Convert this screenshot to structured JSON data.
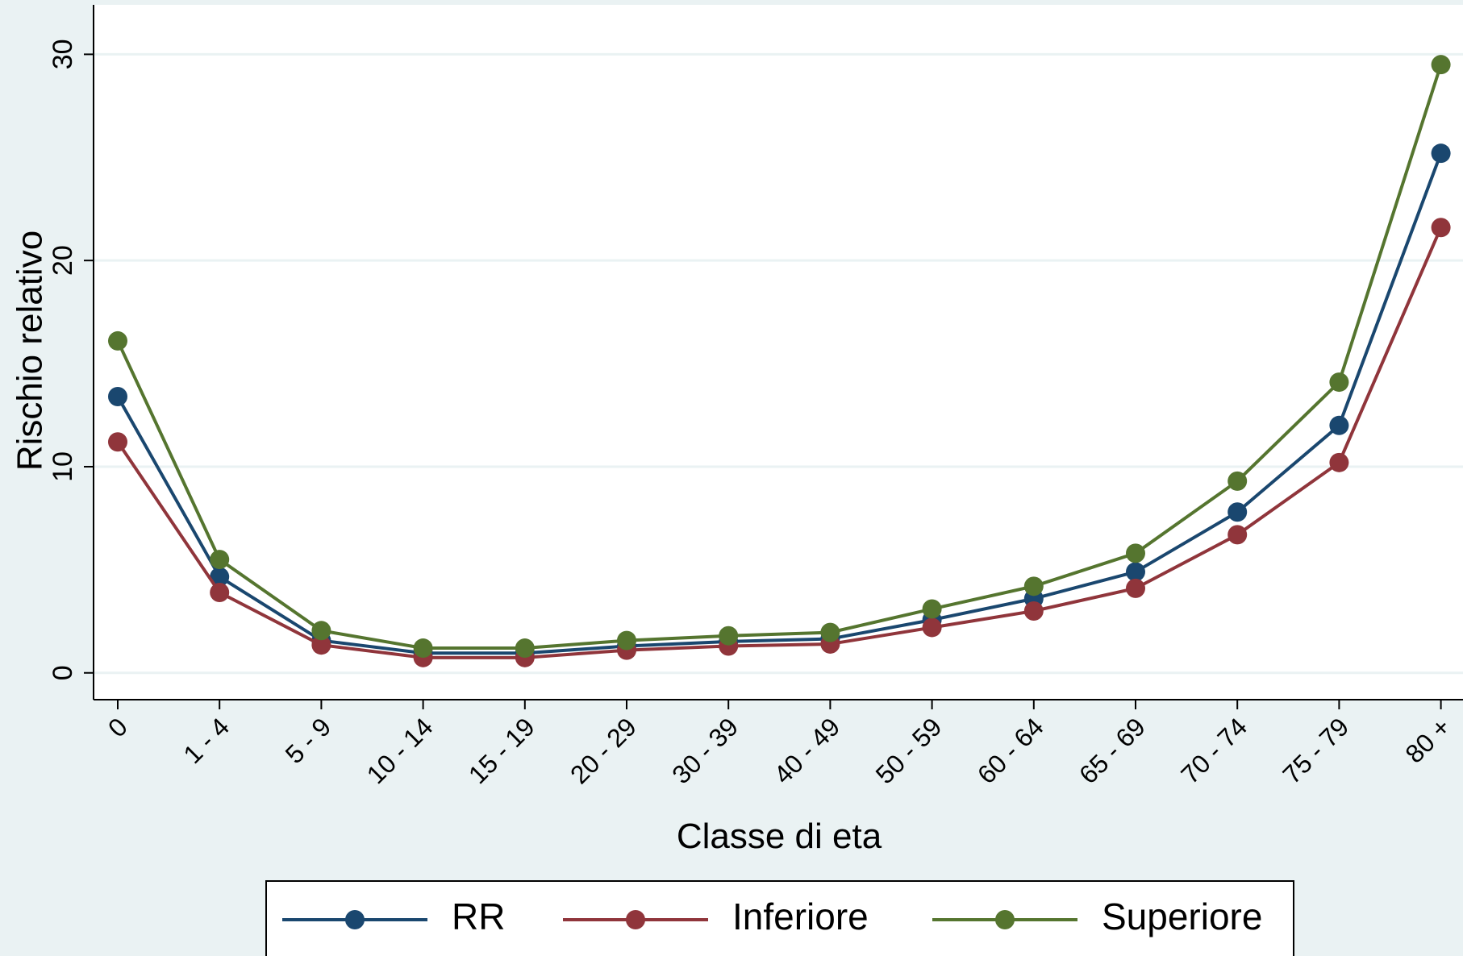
{
  "chart_data": {
    "type": "line",
    "x_label": "Classe di eta",
    "y_label": "Rischio relativo",
    "categories": [
      "0",
      "1 - 4",
      "5 - 9",
      "10 - 14",
      "15 - 19",
      "20 - 29",
      "30 - 39",
      "40 - 49",
      "50 - 59",
      "60 - 64",
      "65 - 69",
      "70 - 74",
      "75 - 79",
      "80 +"
    ],
    "series": [
      {
        "name": "RR",
        "color": "#1a476f",
        "values": [
          13.4,
          4.66,
          1.57,
          0.96,
          0.96,
          1.3,
          1.52,
          1.65,
          2.57,
          3.6,
          4.9,
          7.8,
          12.0,
          25.2
        ]
      },
      {
        "name": "Inferiore",
        "color": "#90353b",
        "values": [
          11.2,
          3.9,
          1.35,
          0.74,
          0.74,
          1.1,
          1.3,
          1.4,
          2.2,
          3.0,
          4.1,
          6.7,
          10.2,
          21.6
        ]
      },
      {
        "name": "Superiore",
        "color": "#55752f",
        "values": [
          16.1,
          5.5,
          2.05,
          1.2,
          1.2,
          1.57,
          1.8,
          1.96,
          3.1,
          4.2,
          5.8,
          9.3,
          14.1,
          29.5
        ]
      }
    ],
    "ylim": [
      -1.3,
      32.4
    ],
    "yticks": [
      0,
      10,
      20,
      30
    ],
    "grid": true,
    "legend": "bottom"
  }
}
